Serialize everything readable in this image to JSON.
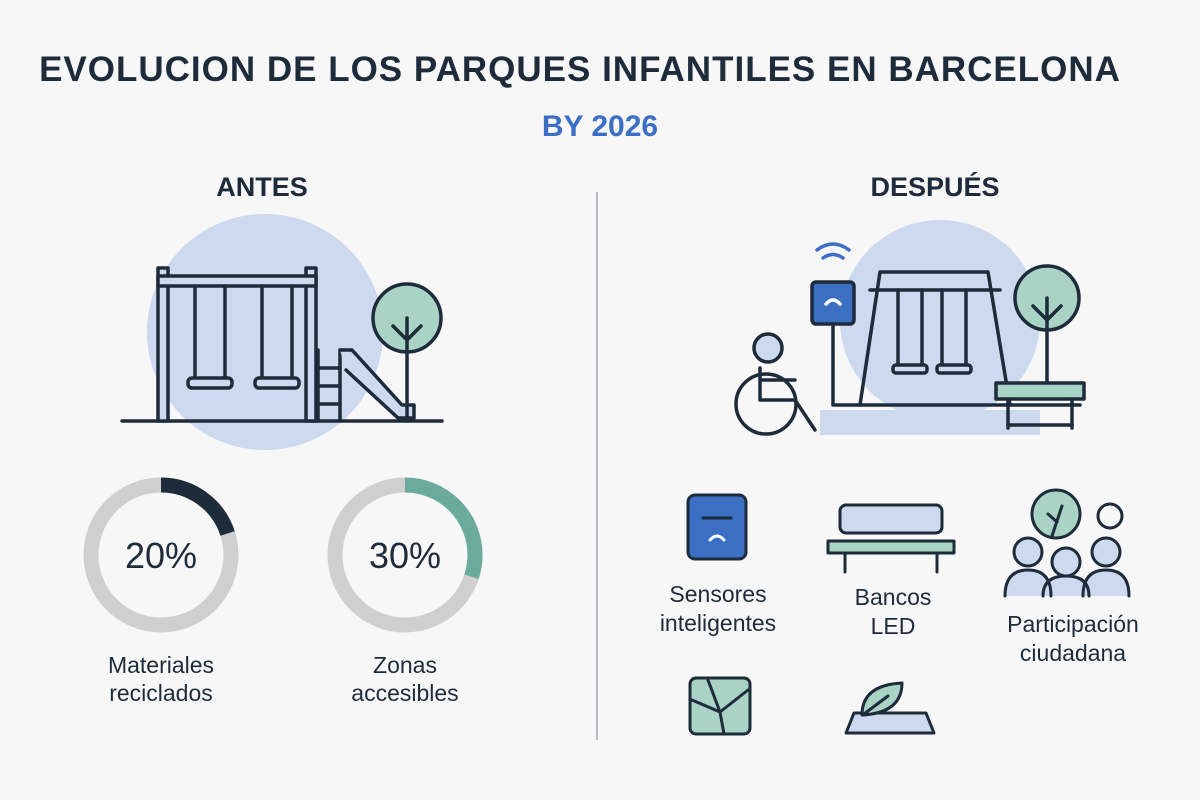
{
  "title": "EVOLUCION DE LOS PARQUES INFANTILES EN BARCELONA",
  "subtitle": "BY 2026",
  "antes": {
    "heading": "ANTES",
    "stats": [
      {
        "value": 20,
        "value_label": "20%",
        "label": "Materiales reciclados",
        "color": "#1d2b3a"
      },
      {
        "value": 30,
        "value_label": "30%",
        "label": "Zonas accesibles",
        "color": "#6aab9c"
      }
    ]
  },
  "despues": {
    "heading": "DESPUÉS",
    "features": [
      {
        "label": "Sensores inteligentes"
      },
      {
        "label": "Bancos LED"
      },
      {
        "label": "Participación ciudadana"
      }
    ]
  }
}
